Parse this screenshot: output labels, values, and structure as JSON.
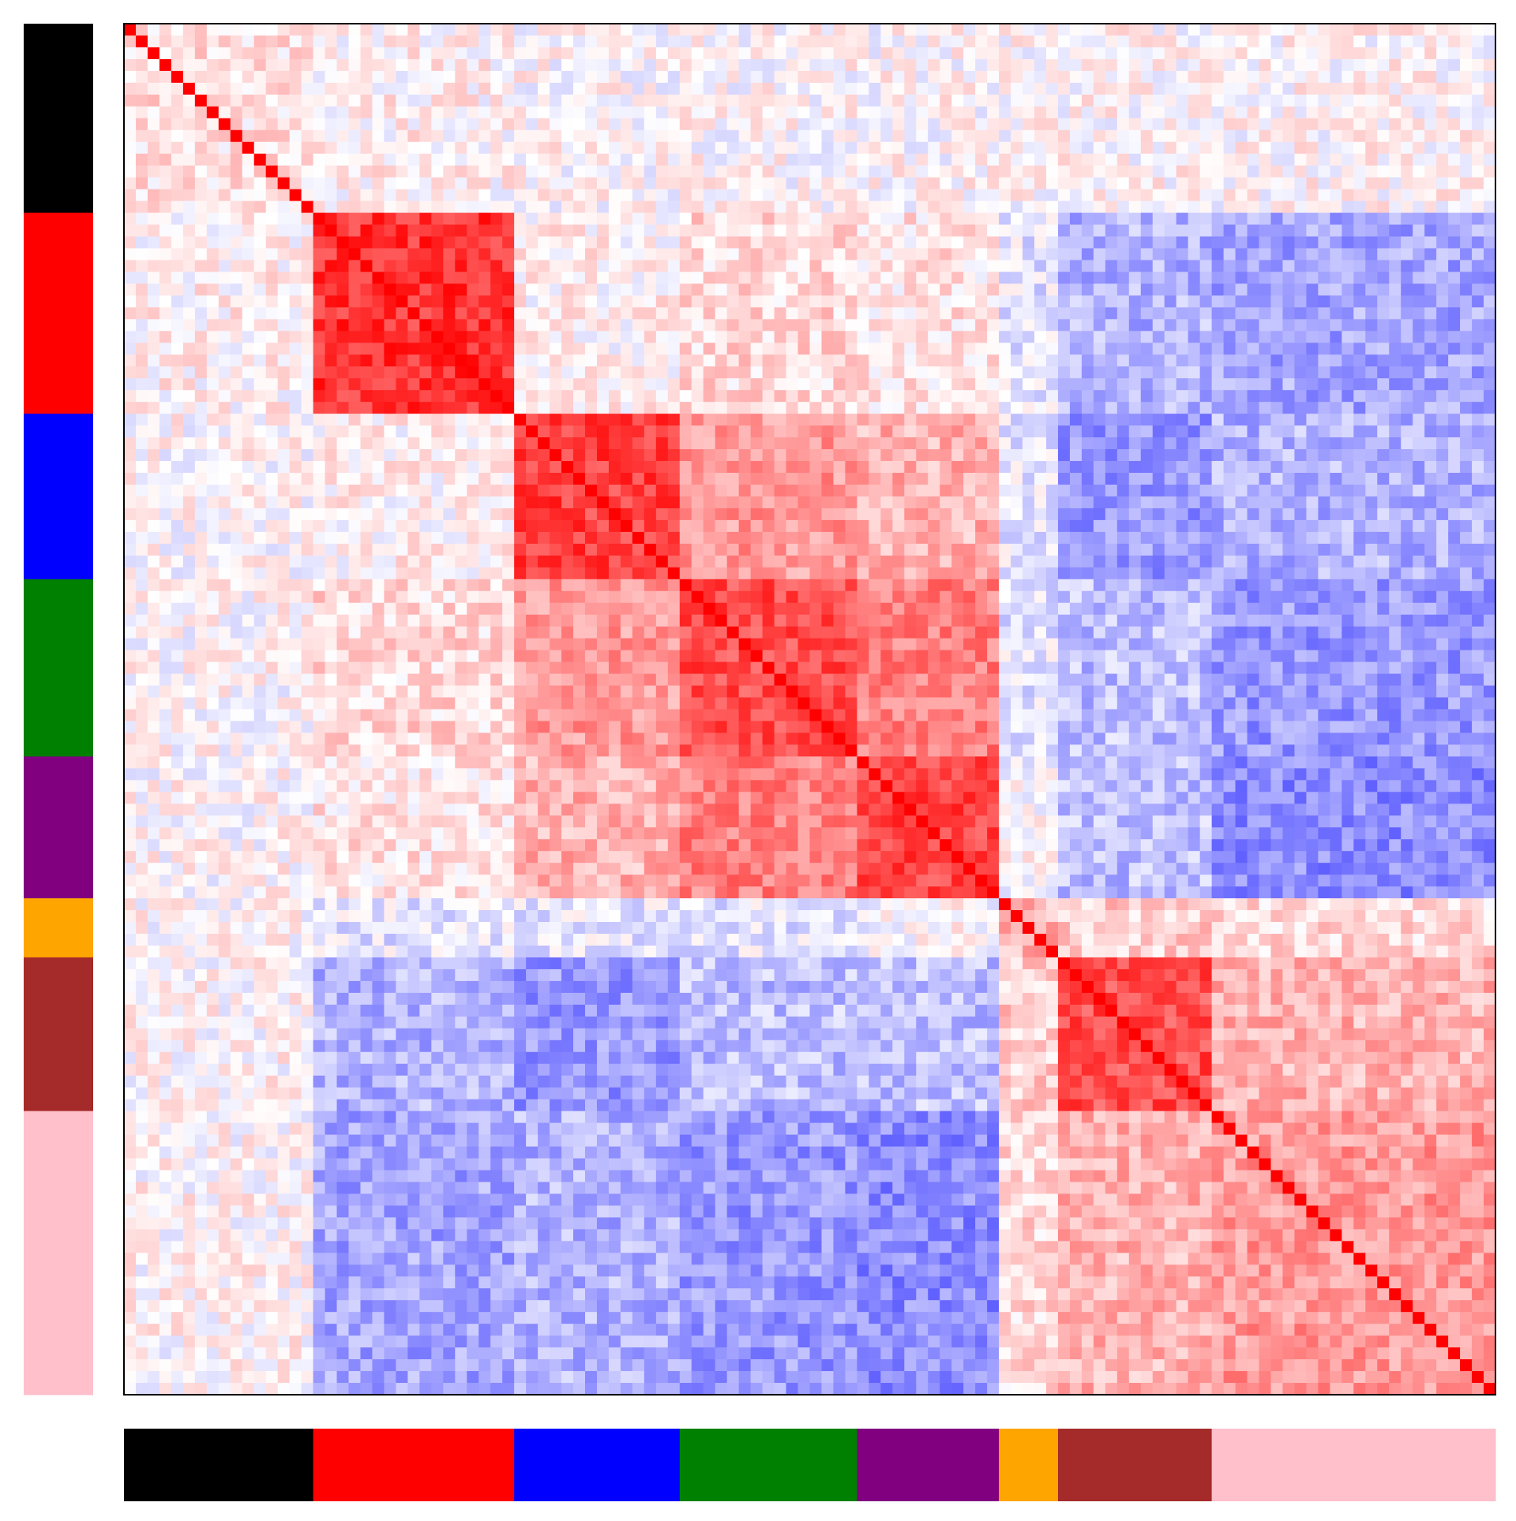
{
  "chart_data": {
    "type": "heatmap",
    "title": "",
    "xlabel": "",
    "ylabel": "",
    "size": 116,
    "colormap": [
      "#0000ff",
      "#ffffff",
      "#ff0000"
    ],
    "value_range": [
      -1,
      1
    ],
    "groups": [
      {
        "color": "#000000",
        "start": 0,
        "count": 16
      },
      {
        "color": "#ff0000",
        "start": 16,
        "count": 17
      },
      {
        "color": "#0000ff",
        "start": 33,
        "count": 14
      },
      {
        "color": "#008000",
        "start": 47,
        "count": 15
      },
      {
        "color": "#800080",
        "start": 62,
        "count": 12
      },
      {
        "color": "#ffa500",
        "start": 74,
        "count": 5
      },
      {
        "color": "#a52a2a",
        "start": 79,
        "count": 13
      },
      {
        "color": "#ffc0cb",
        "start": 92,
        "count": 24
      }
    ],
    "block_means": [
      [
        0.12,
        0.05,
        0.02,
        0.02,
        0.02,
        0.03,
        0.03,
        0.03
      ],
      [
        0.05,
        0.8,
        0.05,
        0.15,
        0.1,
        -0.1,
        -0.3,
        -0.35
      ],
      [
        0.02,
        0.05,
        0.75,
        0.4,
        0.3,
        -0.1,
        -0.4,
        -0.3
      ],
      [
        0.02,
        0.15,
        0.4,
        0.7,
        0.5,
        -0.1,
        -0.25,
        -0.4
      ],
      [
        0.02,
        0.1,
        0.3,
        0.5,
        0.72,
        0.0,
        -0.25,
        -0.45
      ],
      [
        0.03,
        -0.1,
        -0.1,
        -0.1,
        0.0,
        0.3,
        0.2,
        0.15
      ],
      [
        0.03,
        -0.3,
        -0.4,
        -0.25,
        -0.25,
        0.2,
        0.7,
        0.3
      ],
      [
        0.03,
        -0.35,
        -0.3,
        -0.4,
        -0.45,
        0.15,
        0.3,
        0.4
      ]
    ],
    "noise": 0.18,
    "diagonal_value": 1.0,
    "grid": false,
    "row_color_bar": "left",
    "column_color_bar": "bottom"
  }
}
